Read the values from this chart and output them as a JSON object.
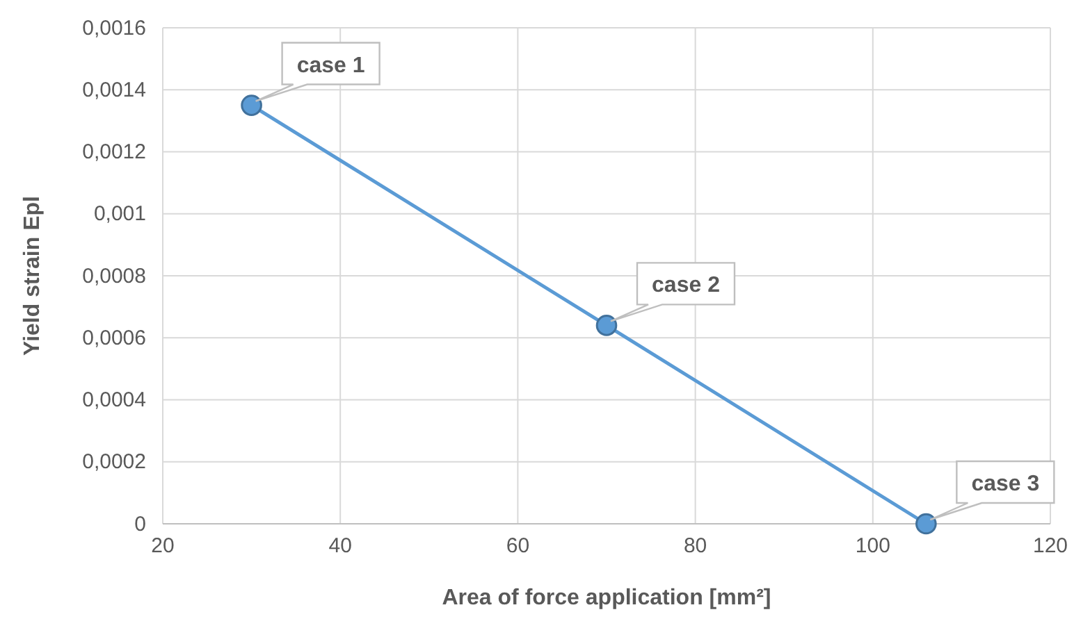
{
  "chart_data": {
    "type": "line",
    "xlabel": "Area of force application [mm²]",
    "ylabel": "Yield strain Epl",
    "x": [
      30,
      70,
      106
    ],
    "series": [
      {
        "color": "#5b9bd5",
        "values": [
          0.00135,
          0.00064,
          0
        ]
      }
    ],
    "xlim": [
      20,
      120
    ],
    "xticks": [
      20,
      40,
      60,
      80,
      100,
      120
    ],
    "ylim": [
      0,
      0.0016
    ],
    "yticks": [
      0,
      {
        "value": 0.0002,
        "label": "0,0002"
      },
      {
        "value": 0.0004,
        "label": "0,0004"
      },
      {
        "value": 0.0006,
        "label": "0,0006"
      },
      {
        "value": 0.0008,
        "label": "0,0008"
      },
      {
        "value": 0.001,
        "label": "0,001"
      },
      {
        "value": 0.0012,
        "label": "0,0012"
      },
      {
        "value": 0.0014,
        "label": "0,0014"
      },
      {
        "value": 0.0016,
        "label": "0,0016"
      }
    ],
    "grid": true,
    "marker": "circle",
    "line_style": "solid",
    "annotations": [
      {
        "text": "case 1",
        "x": 30,
        "y": 0.00135
      },
      {
        "text": "case 2",
        "x": 70,
        "y": 0.00064
      },
      {
        "text": "case 3",
        "x": 106,
        "y": 0
      }
    ]
  }
}
